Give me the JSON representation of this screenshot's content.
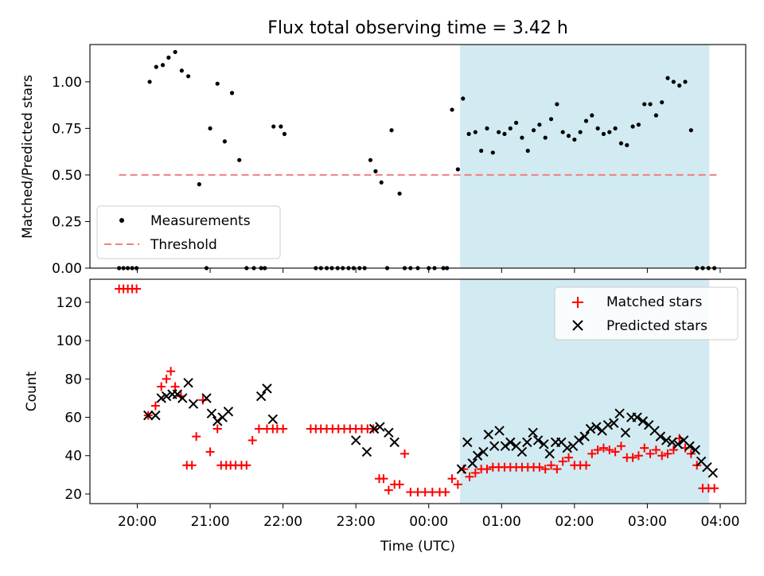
{
  "chart_data": [
    {
      "type": "scatter",
      "title": "Flux total observing time = 3.42 h",
      "xlabel": "",
      "ylabel": "Matched/Predicted stars",
      "ylim": [
        0.0,
        1.2
      ],
      "y_ticks": [
        "0.00",
        "0.25",
        "0.50",
        "0.75",
        "1.00"
      ],
      "x_unit": "hours since 20:00 UTC",
      "xlim": [
        -0.65,
        8.35
      ],
      "grid": false,
      "legend_position": "lower-left",
      "shaded_interval": {
        "start": 4.43,
        "end": 7.85,
        "color": "#add8e6"
      },
      "series": [
        {
          "name": "Measurements",
          "color": "#000000",
          "marker": "dot",
          "x": [
            -0.25,
            -0.19,
            -0.13,
            -0.07,
            -0.01,
            0.17,
            0.26,
            0.35,
            0.43,
            0.52,
            0.61,
            0.7,
            0.85,
            0.95,
            1.0,
            1.1,
            1.2,
            1.3,
            1.4,
            1.5,
            1.6,
            1.7,
            1.75,
            1.87,
            1.97,
            2.02,
            2.45,
            2.52,
            2.6,
            2.67,
            2.75,
            2.82,
            2.9,
            2.97,
            3.05,
            3.12,
            3.2,
            3.27,
            3.35,
            3.43,
            3.49,
            3.6,
            3.67,
            3.75,
            3.85,
            4.0,
            4.08,
            4.2,
            4.25,
            4.32,
            4.4,
            4.47,
            4.55,
            4.64,
            4.72,
            4.8,
            4.88,
            4.96,
            5.04,
            5.12,
            5.2,
            5.28,
            5.36,
            5.44,
            5.52,
            5.6,
            5.68,
            5.76,
            5.84,
            5.92,
            6.0,
            6.08,
            6.16,
            6.24,
            6.32,
            6.4,
            6.48,
            6.56,
            6.64,
            6.72,
            6.8,
            6.88,
            6.96,
            7.04,
            7.12,
            7.2,
            7.28,
            7.36,
            7.44,
            7.52,
            7.6,
            7.68,
            7.76,
            7.84,
            7.92
          ],
          "y": [
            0.0,
            0.0,
            0.0,
            0.0,
            0.0,
            1.0,
            1.08,
            1.09,
            1.13,
            1.16,
            1.06,
            1.03,
            0.45,
            0.0,
            0.75,
            0.99,
            0.68,
            0.94,
            0.58,
            0.0,
            0.0,
            0.0,
            0.0,
            0.76,
            0.76,
            0.72,
            0.0,
            0.0,
            0.0,
            0.0,
            0.0,
            0.0,
            0.0,
            0.0,
            0.0,
            0.0,
            0.58,
            0.52,
            0.46,
            0.0,
            0.74,
            0.4,
            0.0,
            0.0,
            0.0,
            0.0,
            0.0,
            0.0,
            0.0,
            0.85,
            0.53,
            0.91,
            0.72,
            0.73,
            0.63,
            0.75,
            0.62,
            0.73,
            0.72,
            0.75,
            0.78,
            0.7,
            0.63,
            0.74,
            0.77,
            0.7,
            0.8,
            0.88,
            0.73,
            0.71,
            0.69,
            0.73,
            0.79,
            0.82,
            0.75,
            0.72,
            0.73,
            0.75,
            0.67,
            0.66,
            0.76,
            0.77,
            0.88,
            0.88,
            0.82,
            0.89,
            1.02,
            1.0,
            0.98,
            1.0,
            0.74,
            0.0,
            0.0,
            0.0,
            0.0
          ]
        },
        {
          "name": "Threshold",
          "color": "#f08080",
          "style": "dashed",
          "x": [
            -0.25,
            7.95
          ],
          "y": [
            0.5,
            0.5
          ]
        }
      ]
    },
    {
      "type": "scatter",
      "title": "",
      "xlabel": "Time (UTC)",
      "ylabel": "Count",
      "ylim": [
        15,
        132
      ],
      "y_ticks": [
        "20",
        "40",
        "60",
        "80",
        "100",
        "120"
      ],
      "x_ticks": [
        "20:00",
        "21:00",
        "22:00",
        "23:00",
        "00:00",
        "01:00",
        "02:00",
        "03:00",
        "04:00"
      ],
      "x_unit": "hours since 20:00 UTC",
      "xlim": [
        -0.65,
        8.35
      ],
      "grid": false,
      "legend_position": "top-right",
      "shaded_interval": {
        "start": 4.43,
        "end": 7.85,
        "color": "#add8e6"
      },
      "series": [
        {
          "name": "Matched stars",
          "color": "#ff0000",
          "marker": "plus",
          "x": [
            -0.25,
            -0.19,
            -0.13,
            -0.07,
            -0.01,
            0.15,
            0.25,
            0.33,
            0.4,
            0.46,
            0.52,
            0.6,
            0.68,
            0.75,
            0.81,
            0.9,
            1.0,
            1.1,
            1.15,
            1.22,
            1.28,
            1.35,
            1.43,
            1.5,
            1.58,
            1.67,
            1.78,
            1.86,
            1.92,
            2.0,
            2.38,
            2.45,
            2.52,
            2.6,
            2.68,
            2.76,
            2.84,
            2.92,
            3.0,
            3.08,
            3.16,
            3.24,
            3.32,
            3.38,
            3.45,
            3.53,
            3.6,
            3.67,
            3.75,
            3.85,
            3.95,
            4.05,
            4.15,
            4.23,
            4.32,
            4.4,
            4.48,
            4.56,
            4.64,
            4.72,
            4.8,
            4.88,
            4.96,
            5.04,
            5.12,
            5.2,
            5.28,
            5.36,
            5.44,
            5.52,
            5.6,
            5.68,
            5.76,
            5.84,
            5.92,
            6.0,
            6.08,
            6.16,
            6.24,
            6.32,
            6.4,
            6.48,
            6.56,
            6.64,
            6.72,
            6.8,
            6.88,
            6.96,
            7.04,
            7.12,
            7.2,
            7.28,
            7.36,
            7.44,
            7.52,
            7.6,
            7.68,
            7.76,
            7.84,
            7.92
          ],
          "y": [
            127,
            127,
            127,
            127,
            127,
            61,
            66,
            76,
            80,
            84,
            76,
            71,
            35,
            35,
            50,
            69,
            42,
            54,
            35,
            35,
            35,
            35,
            35,
            35,
            48,
            54,
            54,
            54,
            54,
            54,
            54,
            54,
            54,
            54,
            54,
            54,
            54,
            54,
            54,
            54,
            54,
            54,
            28,
            28,
            22,
            25,
            25,
            41,
            21,
            21,
            21,
            21,
            21,
            21,
            28,
            25,
            33,
            29,
            31,
            33,
            33,
            34,
            34,
            34,
            34,
            34,
            34,
            34,
            34,
            34,
            33,
            35,
            33,
            37,
            39,
            35,
            35,
            35,
            41,
            43,
            44,
            43,
            42,
            45,
            39,
            39,
            40,
            44,
            41,
            43,
            40,
            41,
            43,
            49,
            44,
            41,
            35,
            23,
            23,
            23
          ]
        },
        {
          "name": "Predicted stars",
          "color": "#000000",
          "marker": "x",
          "x": [
            0.15,
            0.25,
            0.33,
            0.4,
            0.48,
            0.55,
            0.62,
            0.7,
            0.77,
            0.95,
            1.02,
            1.1,
            1.17,
            1.25,
            1.7,
            1.78,
            1.86,
            3.0,
            3.15,
            3.25,
            3.33,
            3.45,
            3.53,
            4.45,
            4.53,
            4.6,
            4.67,
            4.75,
            4.82,
            4.9,
            4.97,
            5.05,
            5.12,
            5.2,
            5.28,
            5.35,
            5.43,
            5.5,
            5.58,
            5.66,
            5.74,
            5.82,
            5.9,
            5.98,
            6.06,
            6.14,
            6.22,
            6.3,
            6.38,
            6.46,
            6.54,
            6.62,
            6.7,
            6.78,
            6.86,
            6.94,
            7.02,
            7.1,
            7.18,
            7.26,
            7.34,
            7.42,
            7.5,
            7.58,
            7.66,
            7.74,
            7.82,
            7.9
          ],
          "y": [
            61,
            61,
            70,
            71,
            72,
            72,
            70,
            78,
            67,
            70,
            62,
            58,
            60,
            63,
            71,
            75,
            59,
            48,
            42,
            54,
            55,
            52,
            47,
            33,
            47,
            36,
            40,
            42,
            51,
            45,
            53,
            45,
            47,
            45,
            42,
            47,
            52,
            48,
            46,
            41,
            47,
            47,
            44,
            45,
            48,
            50,
            54,
            55,
            53,
            56,
            57,
            62,
            52,
            60,
            60,
            58,
            56,
            53,
            50,
            48,
            47,
            46,
            48,
            45,
            43,
            37,
            34,
            31
          ]
        }
      ]
    }
  ]
}
